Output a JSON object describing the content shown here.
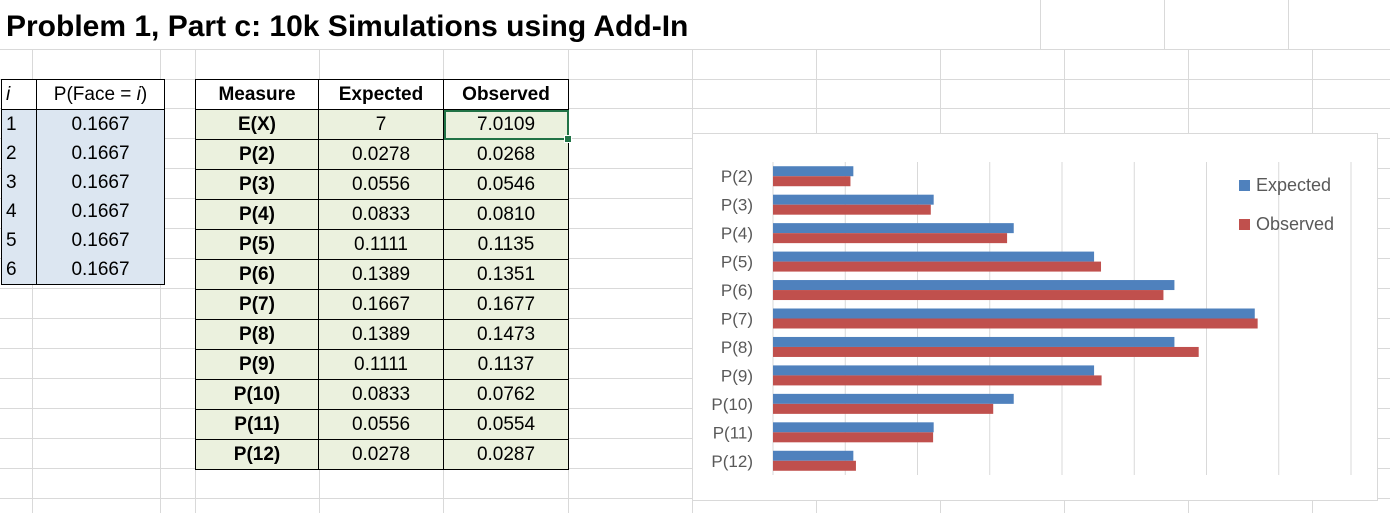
{
  "title": "Problem 1, Part c: 10k Simulations using Add-In",
  "prob_table": {
    "headers": {
      "i": "i",
      "p_prefix": "P(Face = ",
      "p_var": "i",
      "p_suffix": ")"
    },
    "rows": [
      {
        "i": "1",
        "p": "0.1667"
      },
      {
        "i": "2",
        "p": "0.1667"
      },
      {
        "i": "3",
        "p": "0.1667"
      },
      {
        "i": "4",
        "p": "0.1667"
      },
      {
        "i": "5",
        "p": "0.1667"
      },
      {
        "i": "6",
        "p": "0.1667"
      }
    ]
  },
  "measure_table": {
    "headers": {
      "measure": "Measure",
      "expected": "Expected",
      "observed": "Observed"
    },
    "rows": [
      {
        "measure": "E(X)",
        "expected": "7",
        "observed": "7.0109"
      },
      {
        "measure": "P(2)",
        "expected": "0.0278",
        "observed": "0.0268"
      },
      {
        "measure": "P(3)",
        "expected": "0.0556",
        "observed": "0.0546"
      },
      {
        "measure": "P(4)",
        "expected": "0.0833",
        "observed": "0.0810"
      },
      {
        "measure": "P(5)",
        "expected": "0.1111",
        "observed": "0.1135"
      },
      {
        "measure": "P(6)",
        "expected": "0.1389",
        "observed": "0.1351"
      },
      {
        "measure": "P(7)",
        "expected": "0.1667",
        "observed": "0.1677"
      },
      {
        "measure": "P(8)",
        "expected": "0.1389",
        "observed": "0.1473"
      },
      {
        "measure": "P(9)",
        "expected": "0.1111",
        "observed": "0.1137"
      },
      {
        "measure": "P(10)",
        "expected": "0.0833",
        "observed": "0.0762"
      },
      {
        "measure": "P(11)",
        "expected": "0.0556",
        "observed": "0.0554"
      },
      {
        "measure": "P(12)",
        "expected": "0.0278",
        "observed": "0.0287"
      }
    ]
  },
  "chart_data": {
    "type": "bar",
    "orientation": "horizontal",
    "categories": [
      "P(2)",
      "P(3)",
      "P(4)",
      "P(5)",
      "P(6)",
      "P(7)",
      "P(8)",
      "P(9)",
      "P(10)",
      "P(11)",
      "P(12)"
    ],
    "series": [
      {
        "name": "Expected",
        "color": "#4f81bd",
        "values": [
          0.0278,
          0.0556,
          0.0833,
          0.1111,
          0.1389,
          0.1667,
          0.1389,
          0.1111,
          0.0833,
          0.0556,
          0.0278
        ]
      },
      {
        "name": "Observed",
        "color": "#c0504d",
        "values": [
          0.0268,
          0.0546,
          0.081,
          0.1135,
          0.1351,
          0.1677,
          0.1473,
          0.1137,
          0.0762,
          0.0554,
          0.0287
        ]
      }
    ],
    "xlim": [
      0,
      0.2
    ],
    "grid": true,
    "legend": "right"
  }
}
